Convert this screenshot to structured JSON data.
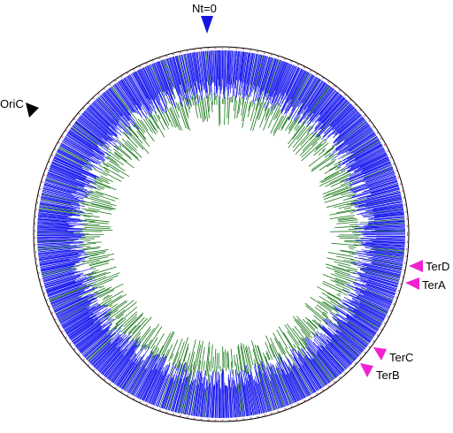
{
  "diagram": {
    "colors": {
      "outer_ticks": "#1010ee",
      "inner_ticks": "#1a7a1a",
      "ring_outline": "#000000",
      "boundary": "#d03060",
      "origin_marker": "#1515e0",
      "oric_marker": "#000000",
      "ter_marker": "#f020d0"
    },
    "markers": [
      {
        "id": "origin",
        "label": "Nt=0",
        "color_key": "origin_marker"
      },
      {
        "id": "oric",
        "label": "OriC",
        "color_key": "oric_marker"
      },
      {
        "id": "terd",
        "label": "TerD",
        "color_key": "ter_marker"
      },
      {
        "id": "tera",
        "label": "TerA",
        "color_key": "ter_marker"
      },
      {
        "id": "terc",
        "label": "TerC",
        "color_key": "ter_marker"
      },
      {
        "id": "terb",
        "label": "TerB",
        "color_key": "ter_marker"
      }
    ]
  }
}
